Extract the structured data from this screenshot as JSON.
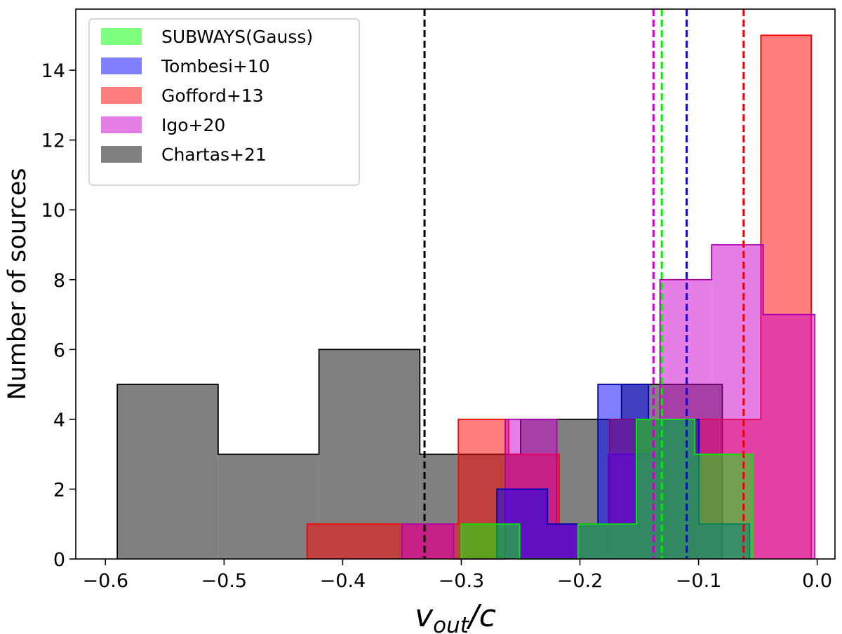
{
  "chart_data": {
    "type": "histogram",
    "title": "",
    "xlabel": "v_out/c",
    "ylabel": "Number of sources",
    "xlim": [
      -0.625,
      0.015
    ],
    "ylim": [
      0,
      15.75
    ],
    "xticks": [
      -0.6,
      -0.5,
      -0.4,
      -0.3,
      -0.2,
      -0.1,
      0.0
    ],
    "xtick_labels": [
      "−0.6",
      "−0.5",
      "−0.4",
      "−0.3",
      "−0.2",
      "−0.1",
      "0.0"
    ],
    "yticks": [
      0,
      2,
      4,
      6,
      8,
      10,
      12,
      14
    ],
    "ytick_labels": [
      "0",
      "2",
      "4",
      "6",
      "8",
      "10",
      "12",
      "14"
    ],
    "grid": false,
    "legend_position": "top-left",
    "series": [
      {
        "name": "Chartas+21",
        "fill": "#808080",
        "fill_opacity": 1.0,
        "edge": "#000000",
        "bin_edges": [
          -0.59,
          -0.505,
          -0.42,
          -0.335,
          -0.25,
          -0.165,
          -0.08
        ],
        "counts": [
          5,
          3,
          6,
          3,
          4,
          5
        ]
      },
      {
        "name": "Gofford+13",
        "fill": "#ff0000",
        "fill_opacity": 0.5,
        "edge": "#ff0000",
        "bin_edges": [
          -0.43,
          -0.3875,
          -0.345,
          -0.3025,
          -0.26,
          -0.2175,
          -0.175,
          -0.1325,
          -0.09,
          -0.0475,
          -0.005
        ],
        "counts": [
          1,
          1,
          1,
          4,
          3,
          1,
          4,
          4,
          4,
          15
        ]
      },
      {
        "name": "Igo+20",
        "fill": "#cc00cc",
        "fill_opacity": 0.5,
        "edge": "#aa00aa",
        "bin_edges": [
          -0.35,
          -0.3065,
          -0.263,
          -0.2195,
          -0.176,
          -0.1325,
          -0.089,
          -0.0455,
          -0.002
        ],
        "counts": [
          1,
          0,
          4,
          1,
          3,
          8,
          9,
          7
        ]
      },
      {
        "name": "Tombesi+10",
        "fill": "#0000ff",
        "fill_opacity": 0.5,
        "edge": "#0000aa",
        "bin_edges": [
          -0.27,
          -0.2274,
          -0.1848,
          -0.1422,
          -0.0996,
          -0.057
        ],
        "counts": [
          2,
          1,
          5,
          4,
          1
        ]
      },
      {
        "name": "SUBWAYS(Gauss)",
        "fill": "#00ff00",
        "fill_opacity": 0.5,
        "edge": "#00ee00",
        "bin_edges": [
          -0.3,
          -0.2508,
          -0.2016,
          -0.1524,
          -0.1032,
          -0.054
        ],
        "counts": [
          1,
          0,
          1,
          4,
          3
        ]
      }
    ],
    "vertical_lines": [
      {
        "name": "Chartas+21 mean",
        "x": -0.331,
        "color": "#000000",
        "style": "dashed"
      },
      {
        "name": "Igo+20 mean",
        "x": -0.138,
        "color": "#cc00cc",
        "style": "dashed"
      },
      {
        "name": "SUBWAYS(Gauss) mean",
        "x": -0.131,
        "color": "#00ee00",
        "style": "dashed"
      },
      {
        "name": "Tombesi+10 mean",
        "x": -0.11,
        "color": "#0000ee",
        "style": "dashed"
      },
      {
        "name": "Gofford+13 mean",
        "x": -0.062,
        "color": "#ee0000",
        "style": "dashed"
      }
    ],
    "legend": [
      {
        "label": "SUBWAYS(Gauss)",
        "color": "#00ff00",
        "opacity": 0.5
      },
      {
        "label": "Tombesi+10",
        "color": "#0000ff",
        "opacity": 0.5
      },
      {
        "label": "Gofford+13",
        "color": "#ff0000",
        "opacity": 0.5
      },
      {
        "label": "Igo+20",
        "color": "#cc00cc",
        "opacity": 0.5
      },
      {
        "label": "Chartas+21",
        "color": "#000000",
        "opacity": 0.5
      }
    ]
  }
}
